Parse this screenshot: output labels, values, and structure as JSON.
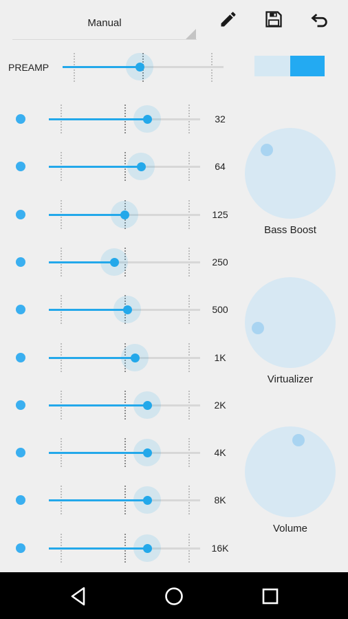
{
  "toolbar": {
    "preset_label": "Manual",
    "edit_icon": "pencil-icon",
    "save_icon": "floppy-disk-icon",
    "undo_icon": "undo-arrow-icon"
  },
  "preamp": {
    "label": "PREAMP",
    "value_fraction": 0.48,
    "enabled": true
  },
  "bands": [
    {
      "label": "32",
      "value_fraction": 0.65
    },
    {
      "label": "64",
      "value_fraction": 0.61
    },
    {
      "label": "125",
      "value_fraction": 0.5
    },
    {
      "label": "250",
      "value_fraction": 0.43
    },
    {
      "label": "500",
      "value_fraction": 0.52
    },
    {
      "label": "1K",
      "value_fraction": 0.57
    },
    {
      "label": "2K",
      "value_fraction": 0.65
    },
    {
      "label": "4K",
      "value_fraction": 0.65
    },
    {
      "label": "8K",
      "value_fraction": 0.65
    },
    {
      "label": "16K",
      "value_fraction": 0.65
    }
  ],
  "knobs": [
    {
      "label": "Bass Boost",
      "angle_deg": 315
    },
    {
      "label": "Virtualizer",
      "angle_deg": 260
    },
    {
      "label": "Volume",
      "angle_deg": 15
    }
  ],
  "navbar": {
    "back_icon": "back-triangle-icon",
    "home_icon": "home-circle-icon",
    "recents_icon": "recents-square-icon"
  },
  "colors": {
    "accent": "#23a8ea",
    "background": "#efefef",
    "knob": "#d7e8f3"
  }
}
